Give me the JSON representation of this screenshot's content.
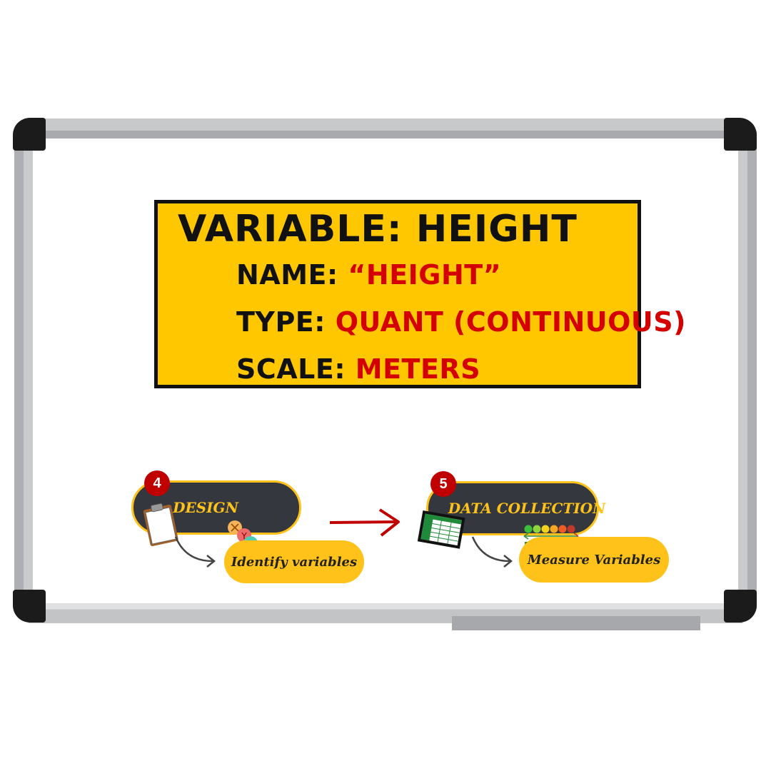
{
  "variable_card": {
    "title": "VARIABLE:  HEIGHT",
    "name_key": "NAME:",
    "name_value": "“HEIGHT”",
    "type_key": "TYPE:",
    "type_value": "QUANT (CONTINUOUS)",
    "scale_key": "SCALE:",
    "scale_value": "METERS"
  },
  "steps": [
    {
      "number": "4",
      "title": "DESIGN",
      "sub": "Identify variables"
    },
    {
      "number": "5",
      "title": "DATA COLLECTION",
      "sub": "Measure Variables"
    }
  ],
  "icons": {
    "design": "clipboard-icon",
    "variables": "xyz-icon",
    "data_collection": "spreadsheet-icon",
    "measure": "rating-scale-icon"
  },
  "colors": {
    "card_fill": "#ffc700",
    "card_value": "#d40000",
    "pill_dark": "#34383e",
    "pill_accent": "#ffc21a",
    "badge": "#c00000",
    "arrow": "#c00000"
  }
}
